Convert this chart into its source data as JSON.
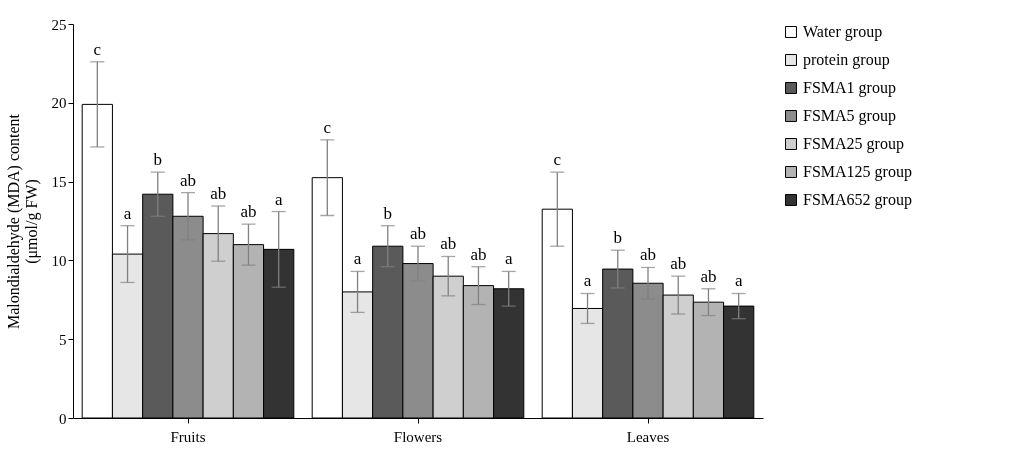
{
  "chart_data": {
    "type": "bar",
    "ylabel": "Malondialdehyde (MDA) content\n(μmol/g FW)",
    "categories": [
      "Fruits",
      "Flowers",
      "Leaves"
    ],
    "ylim": [
      0,
      25
    ],
    "yticks": [
      0,
      5,
      10,
      15,
      20,
      25
    ],
    "grid": false,
    "legend": "right",
    "series": [
      {
        "name": "Water group",
        "color": "#ffffff",
        "values": [
          19.9,
          15.25,
          13.25
        ],
        "errors": [
          2.7,
          2.4,
          2.35
        ],
        "value_labels": [
          "c",
          "c",
          "c"
        ]
      },
      {
        "name": "protein group",
        "color": "#e6e6e6",
        "values": [
          10.4,
          8.0,
          6.95
        ],
        "errors": [
          1.8,
          1.3,
          0.95
        ],
        "value_labels": [
          "a",
          "a",
          "a"
        ]
      },
      {
        "name": "FSMA1 group",
        "color": "#5a5a5a",
        "values": [
          14.2,
          10.9,
          9.45
        ],
        "errors": [
          1.4,
          1.3,
          1.2
        ],
        "value_labels": [
          "b",
          "b",
          "b"
        ]
      },
      {
        "name": "FSMA5 group",
        "color": "#8c8c8c",
        "values": [
          12.8,
          9.8,
          8.55
        ],
        "errors": [
          1.5,
          1.1,
          1.0
        ],
        "value_labels": [
          "ab",
          "ab",
          "ab"
        ]
      },
      {
        "name": "FSMA25 group",
        "color": "#cfcfcf",
        "values": [
          11.7,
          9.0,
          7.8
        ],
        "errors": [
          1.75,
          1.25,
          1.2
        ],
        "value_labels": [
          "ab",
          "ab",
          "ab"
        ]
      },
      {
        "name": "FSMA125 group",
        "color": "#b3b3b3",
        "values": [
          11.0,
          8.4,
          7.35
        ],
        "errors": [
          1.3,
          1.2,
          0.85
        ],
        "value_labels": [
          "ab",
          "ab",
          "ab"
        ]
      },
      {
        "name": "FSMA652 group",
        "color": "#333333",
        "values": [
          10.7,
          8.2,
          7.1
        ],
        "errors": [
          2.4,
          1.1,
          0.8
        ],
        "value_labels": [
          "a",
          "a",
          "a"
        ]
      }
    ]
  }
}
